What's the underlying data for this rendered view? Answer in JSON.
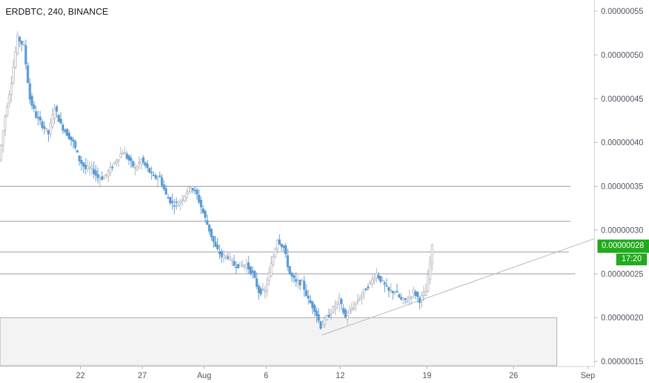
{
  "header": {
    "title": "ERDBTC, 240, BINANCE"
  },
  "colors": {
    "up": "#b2b5be",
    "down": "#5b9bd5",
    "grid_text": "#50535e",
    "horizontal_line": "#9598a1",
    "trendline": "#b2b5be",
    "zone_fill": "#f3f3f3",
    "last_price": "#22ab1e"
  },
  "last_price": {
    "value": "0.00000028",
    "countdown": "17:20"
  },
  "chart_data": {
    "type": "candlestick",
    "symbol": "ERDBTC",
    "interval": "240",
    "exchange": "BINANCE",
    "y_axis": {
      "ticks": [
        "0.00000055",
        "0.00000050",
        "0.00000045",
        "0.00000040",
        "0.00000035",
        "0.00000030",
        "0.00000025",
        "0.00000020",
        "0.00000015"
      ],
      "tick_values": [
        55,
        50,
        45,
        40,
        35,
        30,
        25,
        20,
        15
      ],
      "unit_scale": "1e-8 BTC",
      "range": [
        15,
        55
      ]
    },
    "x_axis": {
      "ticks": [
        "22",
        "27",
        "Aug",
        "6",
        "12",
        "19",
        "26",
        "Sep"
      ],
      "tick_days": [
        22,
        27,
        32,
        37,
        43,
        50,
        57,
        63
      ],
      "day_origin": "July 1",
      "range_days": [
        15.5,
        63.5
      ]
    },
    "horizontal_levels": [
      35,
      31,
      27.5,
      25
    ],
    "zone": {
      "top": 20,
      "bottom": 15,
      "end_day": 60.5
    },
    "trendline": {
      "from": {
        "day": 41.5,
        "value": 18
      },
      "to": {
        "day": 63.5,
        "value": 29
      }
    },
    "price_path": [
      [
        15.5,
        38
      ],
      [
        16.0,
        43
      ],
      [
        16.5,
        47
      ],
      [
        17.0,
        52
      ],
      [
        17.5,
        51
      ],
      [
        18.0,
        45
      ],
      [
        18.5,
        43
      ],
      [
        19.0,
        42
      ],
      [
        19.5,
        41
      ],
      [
        20.0,
        44
      ],
      [
        20.5,
        42
      ],
      [
        21.0,
        41
      ],
      [
        21.5,
        40
      ],
      [
        22.0,
        38
      ],
      [
        22.5,
        37
      ],
      [
        23.0,
        37
      ],
      [
        23.5,
        36
      ],
      [
        24.0,
        36
      ],
      [
        24.5,
        37
      ],
      [
        25.0,
        38
      ],
      [
        25.5,
        39
      ],
      [
        26.0,
        38
      ],
      [
        26.5,
        37
      ],
      [
        27.0,
        38
      ],
      [
        27.5,
        37
      ],
      [
        28.0,
        36
      ],
      [
        28.5,
        36
      ],
      [
        29.0,
        34
      ],
      [
        29.5,
        33
      ],
      [
        30.0,
        33
      ],
      [
        30.5,
        34
      ],
      [
        31.0,
        35
      ],
      [
        31.5,
        34
      ],
      [
        32.0,
        32
      ],
      [
        32.5,
        30
      ],
      [
        33.0,
        28
      ],
      [
        33.5,
        27
      ],
      [
        34.0,
        27
      ],
      [
        34.5,
        26
      ],
      [
        35.0,
        26
      ],
      [
        35.5,
        26
      ],
      [
        36.0,
        25
      ],
      [
        36.5,
        23
      ],
      [
        37.0,
        23
      ],
      [
        37.5,
        26
      ],
      [
        38.0,
        29
      ],
      [
        38.5,
        28
      ],
      [
        39.0,
        25
      ],
      [
        39.5,
        24
      ],
      [
        40.0,
        24
      ],
      [
        40.5,
        22
      ],
      [
        41.0,
        21
      ],
      [
        41.5,
        19
      ],
      [
        42.0,
        20
      ],
      [
        42.5,
        21
      ],
      [
        43.0,
        22
      ],
      [
        43.5,
        20
      ],
      [
        44.0,
        21
      ],
      [
        44.5,
        22
      ],
      [
        45.0,
        23
      ],
      [
        45.5,
        24
      ],
      [
        46.0,
        25
      ],
      [
        46.5,
        24
      ],
      [
        47.0,
        23
      ],
      [
        47.5,
        23
      ],
      [
        48.0,
        22
      ],
      [
        48.5,
        22
      ],
      [
        49.0,
        23
      ],
      [
        49.5,
        22
      ],
      [
        50.0,
        23
      ],
      [
        50.5,
        28
      ]
    ]
  }
}
